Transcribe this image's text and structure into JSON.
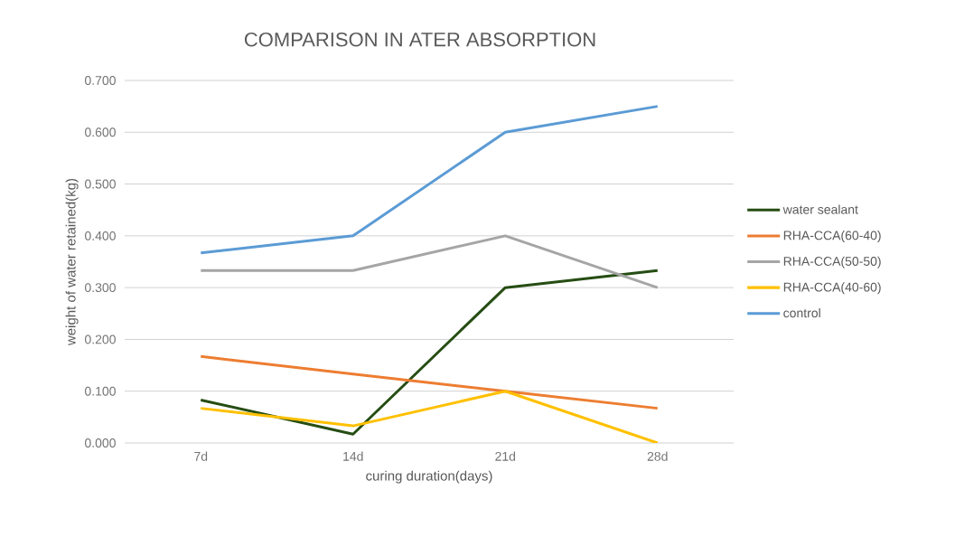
{
  "chart_data": {
    "type": "line",
    "title": "COMPARISON IN ATER ABSORPTION",
    "xlabel": "curing duration(days)",
    "ylabel": "weight of water retained(kg)",
    "categories": [
      "7d",
      "14d",
      "21d",
      "28d"
    ],
    "series": [
      {
        "name": "water sealant",
        "color": "#264d13",
        "values": [
          0.083,
          0.017,
          0.3,
          0.333
        ]
      },
      {
        "name": "RHA-CCA(60-40)",
        "color": "#ed7d31",
        "values": [
          0.167,
          0.133,
          0.1,
          0.067
        ]
      },
      {
        "name": "RHA-CCA(50-50)",
        "color": "#a5a5a5",
        "values": [
          0.333,
          0.333,
          0.4,
          0.3
        ]
      },
      {
        "name": "RHA-CCA(40-60)",
        "color": "#ffc000",
        "values": [
          0.067,
          0.033,
          0.1,
          0.0
        ]
      },
      {
        "name": "control",
        "color": "#5b9bd5",
        "values": [
          0.367,
          0.4,
          0.6,
          0.65
        ]
      }
    ],
    "ylim": [
      0,
      0.7
    ],
    "yticks": [
      {
        "value": 0,
        "label": "0.000"
      },
      {
        "value": 0.1,
        "label": "0.100"
      },
      {
        "value": 0.2,
        "label": "0.200"
      },
      {
        "value": 0.3,
        "label": "0.300"
      },
      {
        "value": 0.4,
        "label": "0.400"
      },
      {
        "value": 0.5,
        "label": "0.500"
      },
      {
        "value": 0.6,
        "label": "0.600"
      },
      {
        "value": 0.7,
        "label": "0.700"
      }
    ],
    "grid": "y",
    "legend": "right",
    "marker": "none",
    "line_style": "solid"
  }
}
